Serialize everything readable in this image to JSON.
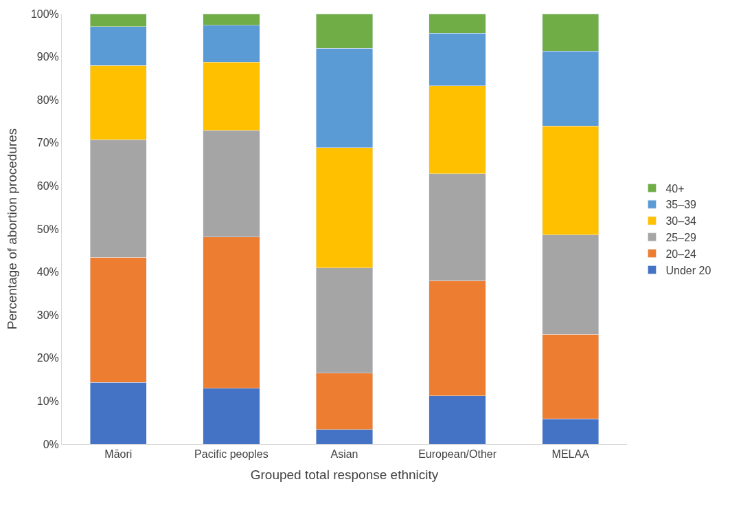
{
  "chart_data": {
    "type": "bar",
    "stacked": true,
    "xlabel": "Grouped total response ethnicity",
    "ylabel": "Percentage of abortion procedures",
    "categories": [
      "Māori",
      "Pacific peoples",
      "Asian",
      "European/Other",
      "MELAA"
    ],
    "series": [
      {
        "name": "Under 20",
        "color": "#4472c4",
        "values": [
          14.3,
          13.0,
          3.4,
          11.2,
          5.9
        ]
      },
      {
        "name": "20–24",
        "color": "#ed7d31",
        "values": [
          29.1,
          35.1,
          13.1,
          26.8,
          19.6
        ]
      },
      {
        "name": "25–29",
        "color": "#a5a5a5",
        "values": [
          27.3,
          24.8,
          24.4,
          24.8,
          23.1
        ]
      },
      {
        "name": "30–34",
        "color": "#ffc000",
        "values": [
          17.3,
          15.9,
          28.0,
          20.5,
          25.3
        ]
      },
      {
        "name": "35–39",
        "color": "#5b9bd5",
        "values": [
          9.0,
          8.5,
          23.1,
          12.2,
          17.4
        ]
      },
      {
        "name": "40+",
        "color": "#70ad47",
        "values": [
          3.0,
          2.7,
          8.0,
          4.5,
          8.7
        ]
      }
    ],
    "ylim": [
      0,
      100
    ],
    "yticks": [
      {
        "value": 0,
        "label": "0%"
      },
      {
        "value": 10,
        "label": "10%"
      },
      {
        "value": 20,
        "label": "20%"
      },
      {
        "value": 30,
        "label": "30%"
      },
      {
        "value": 40,
        "label": "40%"
      },
      {
        "value": 50,
        "label": "50%"
      },
      {
        "value": 60,
        "label": "60%"
      },
      {
        "value": 70,
        "label": "70%"
      },
      {
        "value": 80,
        "label": "80%"
      },
      {
        "value": 90,
        "label": "90%"
      },
      {
        "value": 100,
        "label": "100%"
      }
    ],
    "grid": false,
    "legend": "right"
  }
}
